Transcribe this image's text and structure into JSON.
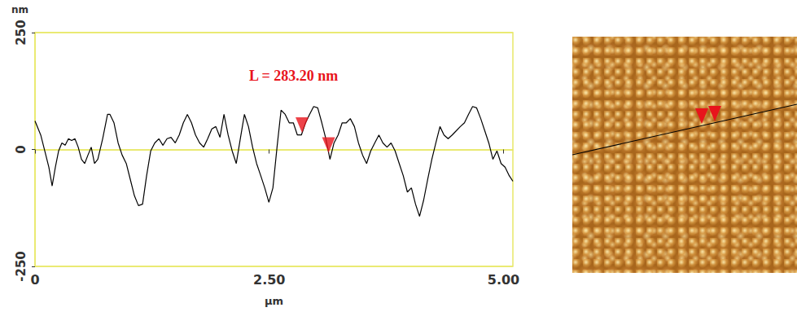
{
  "chart_data": {
    "type": "line",
    "y_label": "nm",
    "x_label": "µm",
    "annotations": [
      {
        "text": "L = 283.20 nm",
        "color": "#e8141c"
      }
    ],
    "color": "#000000",
    "xlim": [
      0,
      5.1
    ],
    "xticks": [
      0,
      {
        "value": 2.5,
        "label": "2.50"
      },
      {
        "value": 5,
        "label": "5.00"
      }
    ],
    "ylim": [
      -250,
      250
    ],
    "yticks": [
      -250,
      0,
      250
    ],
    "grid": true,
    "x": [
      0,
      0.061,
      0.104,
      0.148,
      0.183,
      0.217,
      0.252,
      0.287,
      0.322,
      0.357,
      0.391,
      0.426,
      0.461,
      0.496,
      0.53,
      0.565,
      0.6,
      0.635,
      0.67,
      0.722,
      0.774,
      0.8,
      0.843,
      0.887,
      0.93,
      0.974,
      1.017,
      1.061,
      1.104,
      1.148,
      1.191,
      1.235,
      1.278,
      1.322,
      1.365,
      1.409,
      1.452,
      1.496,
      1.539,
      1.583,
      1.626,
      1.67,
      1.713,
      1.757,
      1.8,
      1.843,
      1.887,
      1.93,
      1.974,
      2.017,
      2.061,
      2.104,
      2.148,
      2.191,
      2.235,
      2.278,
      2.322,
      2.365,
      2.409,
      2.452,
      2.496,
      2.539,
      2.583,
      2.626,
      2.67,
      2.713,
      2.757,
      2.8,
      2.843,
      2.887,
      2.93,
      2.974,
      3.017,
      3.061,
      3.104,
      3.148,
      3.191,
      3.235,
      3.278,
      3.322,
      3.365,
      3.409,
      3.452,
      3.496,
      3.539,
      3.583,
      3.626,
      3.67,
      3.713,
      3.757,
      3.8,
      3.843,
      3.887,
      3.93,
      3.974,
      4.017,
      4.061,
      4.104,
      4.148,
      4.191,
      4.235,
      4.278,
      4.322,
      4.365,
      4.409,
      4.452,
      4.496,
      4.539,
      4.583,
      4.626,
      4.67,
      4.713,
      4.757,
      4.8,
      4.843,
      4.887,
      4.93,
      4.974,
      5.017,
      5.061,
      5.1
    ],
    "values": [
      61,
      31,
      -3,
      -38,
      -78,
      -38,
      -3,
      14,
      9,
      23,
      19,
      23,
      5,
      -21,
      -30,
      -12,
      5,
      -30,
      -21,
      23,
      75,
      75,
      57,
      14,
      -12,
      -30,
      -64,
      -99,
      -120,
      -117,
      -56,
      -3,
      14,
      23,
      9,
      23,
      26,
      14,
      31,
      57,
      75,
      57,
      31,
      14,
      5,
      23,
      44,
      49,
      26,
      75,
      31,
      -3,
      -30,
      23,
      75,
      49,
      5,
      -30,
      -56,
      -82,
      -113,
      -82,
      5,
      84,
      75,
      57,
      57,
      31,
      31,
      57,
      75,
      92,
      89,
      57,
      23,
      -21,
      14,
      31,
      57,
      57,
      66,
      49,
      14,
      -12,
      -30,
      -3,
      14,
      31,
      14,
      5,
      14,
      -3,
      -30,
      -56,
      -91,
      -82,
      -117,
      -143,
      -108,
      -64,
      -21,
      14,
      49,
      31,
      23,
      31,
      40,
      49,
      57,
      75,
      92,
      89,
      66,
      40,
      14,
      -21,
      -3,
      -30,
      -38,
      -56,
      -68
    ],
    "markers": {
      "color": "#e8141c",
      "marker": "triangle",
      "x": [
        2.85,
        3.133
      ],
      "values": [
        35,
        -8
      ]
    }
  }
}
